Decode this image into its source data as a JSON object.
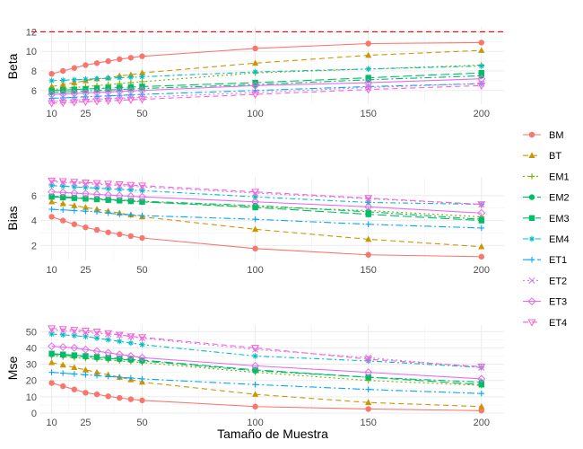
{
  "chart_data": {
    "type": "line",
    "xlabel": "Tamaño de Muestra",
    "x_ticks": [
      10,
      25,
      50,
      100,
      150,
      200
    ],
    "x": [
      10,
      15,
      20,
      25,
      30,
      35,
      40,
      45,
      50,
      100,
      150,
      200
    ],
    "xlim": [
      5,
      210
    ],
    "legend": {
      "placement": "right"
    },
    "series_styles": [
      {
        "name": "BM",
        "color": "#F8766D",
        "dash": "",
        "shape": "circle"
      },
      {
        "name": "BT",
        "color": "#CD9600",
        "dash": "6,4",
        "shape": "triangle"
      },
      {
        "name": "EM1",
        "color": "#7CAE00",
        "dash": "2,3",
        "shape": "plus"
      },
      {
        "name": "EM2",
        "color": "#00BE67",
        "dash": "8,3,2,3",
        "shape": "circle"
      },
      {
        "name": "EM3",
        "color": "#00BE67",
        "dash": "10,4",
        "shape": "square"
      },
      {
        "name": "EM4",
        "color": "#00BFC4",
        "dash": "6,3,2,3",
        "shape": "star"
      },
      {
        "name": "ET1",
        "color": "#00A9FF",
        "dash": "8,3,2,3",
        "shape": "plus"
      },
      {
        "name": "ET2",
        "color": "#C77CFF",
        "dash": "2,3",
        "shape": "cross"
      },
      {
        "name": "ET3",
        "color": "#E76BF3",
        "dash": "",
        "shape": "diamond"
      },
      {
        "name": "ET4",
        "color": "#FF61CC",
        "dash": "6,4",
        "shape": "triangle-down"
      }
    ],
    "panels": [
      {
        "ylabel": "Beta",
        "ylim": [
          4.6,
          12.5
        ],
        "y_ticks": [
          6,
          8,
          10,
          12
        ],
        "reference_line": {
          "y": 12,
          "color": "#FF0000",
          "dash": "6,4"
        },
        "series": [
          {
            "name": "BM",
            "values": [
              7.7,
              8.0,
              8.3,
              8.6,
              8.8,
              9.0,
              9.2,
              9.35,
              9.5,
              10.3,
              10.8,
              10.9
            ]
          },
          {
            "name": "BT",
            "values": [
              6.4,
              6.6,
              6.8,
              7.0,
              7.2,
              7.3,
              7.5,
              7.6,
              7.8,
              8.8,
              9.6,
              10.1
            ]
          },
          {
            "name": "EM1",
            "values": [
              6.1,
              6.2,
              6.3,
              6.4,
              6.5,
              6.6,
              6.7,
              6.8,
              6.9,
              7.8,
              8.2,
              8.6
            ]
          },
          {
            "name": "EM2",
            "values": [
              5.8,
              5.85,
              5.9,
              5.95,
              6.0,
              6.05,
              6.1,
              6.15,
              6.2,
              6.6,
              7.1,
              7.5
            ]
          },
          {
            "name": "EM3",
            "values": [
              6.0,
              6.05,
              6.1,
              6.15,
              6.2,
              6.25,
              6.3,
              6.35,
              6.4,
              6.8,
              7.3,
              7.8
            ]
          },
          {
            "name": "EM4",
            "values": [
              7.0,
              7.05,
              7.1,
              7.15,
              7.2,
              7.25,
              7.3,
              7.35,
              7.4,
              7.9,
              8.2,
              8.5
            ]
          },
          {
            "name": "ET1",
            "values": [
              5.2,
              5.25,
              5.3,
              5.35,
              5.4,
              5.45,
              5.5,
              5.55,
              5.6,
              6.0,
              6.4,
              6.7
            ]
          },
          {
            "name": "ET2",
            "values": [
              4.9,
              4.95,
              5.0,
              5.05,
              5.1,
              5.15,
              5.2,
              5.25,
              5.3,
              5.8,
              6.3,
              6.7
            ]
          },
          {
            "name": "ET3",
            "values": [
              5.6,
              5.65,
              5.7,
              5.75,
              5.8,
              5.85,
              5.9,
              5.95,
              6.0,
              6.5,
              6.8,
              7.2
            ]
          },
          {
            "name": "ET4",
            "values": [
              4.7,
              4.75,
              4.8,
              4.85,
              4.9,
              4.95,
              5.0,
              5.05,
              5.1,
              5.6,
              6.1,
              6.5
            ]
          }
        ]
      },
      {
        "ylabel": "Bias",
        "ylim": [
          0.8,
          7.5
        ],
        "y_ticks": [
          2,
          4,
          6
        ],
        "series": [
          {
            "name": "BM",
            "values": [
              4.3,
              4.0,
              3.7,
              3.45,
              3.25,
              3.05,
              2.9,
              2.75,
              2.6,
              1.75,
              1.25,
              1.1
            ]
          },
          {
            "name": "BT",
            "values": [
              5.5,
              5.35,
              5.2,
              5.05,
              4.9,
              4.75,
              4.6,
              4.45,
              4.3,
              3.3,
              2.5,
              1.9
            ]
          },
          {
            "name": "EM1",
            "values": [
              5.9,
              5.85,
              5.8,
              5.75,
              5.7,
              5.65,
              5.6,
              5.55,
              5.5,
              5.1,
              4.8,
              4.3
            ]
          },
          {
            "name": "EM2",
            "values": [
              5.95,
              5.9,
              5.85,
              5.8,
              5.75,
              5.7,
              5.65,
              5.6,
              5.55,
              5.2,
              4.7,
              4.1
            ]
          },
          {
            "name": "EM3",
            "values": [
              5.9,
              5.85,
              5.8,
              5.75,
              5.7,
              5.65,
              5.6,
              5.55,
              5.5,
              5.05,
              4.5,
              4.0
            ]
          },
          {
            "name": "EM4",
            "values": [
              6.8,
              6.75,
              6.7,
              6.65,
              6.6,
              6.55,
              6.5,
              6.45,
              6.4,
              5.9,
              5.45,
              5.3
            ]
          },
          {
            "name": "ET1",
            "values": [
              4.9,
              4.85,
              4.8,
              4.75,
              4.7,
              4.6,
              4.5,
              4.45,
              4.4,
              4.1,
              3.7,
              3.4
            ]
          },
          {
            "name": "ET2",
            "values": [
              7.1,
              7.05,
              7.0,
              6.95,
              6.9,
              6.85,
              6.8,
              6.75,
              6.7,
              6.2,
              5.75,
              5.3
            ]
          },
          {
            "name": "ET3",
            "values": [
              6.3,
              6.25,
              6.2,
              6.15,
              6.1,
              6.05,
              6.0,
              5.95,
              5.9,
              5.5,
              5.1,
              4.6
            ]
          },
          {
            "name": "ET4",
            "values": [
              7.2,
              7.15,
              7.1,
              7.05,
              7.0,
              6.95,
              6.9,
              6.85,
              6.8,
              6.3,
              5.8,
              5.3
            ]
          }
        ]
      },
      {
        "ylabel": "Mse",
        "ylim": [
          0,
          54
        ],
        "y_ticks": [
          0,
          10,
          20,
          30,
          40,
          50
        ],
        "series": [
          {
            "name": "BM",
            "values": [
              18.5,
              16.5,
              14.5,
              12.5,
              11.5,
              10.3,
              9.3,
              8.5,
              7.8,
              4.0,
              2.5,
              1.5
            ]
          },
          {
            "name": "BT",
            "values": [
              31,
              29.5,
              28,
              26.5,
              25,
              23.5,
              22,
              20.5,
              19,
              11.5,
              6.5,
              4.0
            ]
          },
          {
            "name": "EM1",
            "values": [
              35,
              34.5,
              34,
              33.5,
              33,
              32.5,
              32,
              31.5,
              31,
              25,
              20,
              17
            ]
          },
          {
            "name": "EM2",
            "values": [
              36,
              35.5,
              35,
              34.5,
              34,
              33.5,
              33,
              32.5,
              32,
              26,
              22,
              19
            ]
          },
          {
            "name": "EM3",
            "values": [
              36.5,
              36,
              35.5,
              35,
              34.5,
              34,
              33.5,
              33,
              32.5,
              26.5,
              22,
              17.5
            ]
          },
          {
            "name": "EM4",
            "values": [
              48.5,
              48,
              47.5,
              47,
              46,
              45,
              44,
              43,
              42,
              35,
              32,
              28
            ]
          },
          {
            "name": "ET1",
            "values": [
              25,
              24.5,
              24,
              23.5,
              23,
              22.5,
              22,
              21.5,
              21,
              17.5,
              14.5,
              12
            ]
          },
          {
            "name": "ET2",
            "values": [
              51,
              50.5,
              50,
              49.5,
              49,
              48.5,
              48,
              47,
              46,
              39,
              34,
              28
            ]
          },
          {
            "name": "ET3",
            "values": [
              41,
              40.5,
              40,
              39,
              38,
              37,
              36,
              35,
              34,
              29,
              25,
              21
            ]
          },
          {
            "name": "ET4",
            "values": [
              52,
              51.5,
              51,
              50.5,
              50,
              49,
              48,
              47,
              46.5,
              40,
              33,
              28.5
            ]
          }
        ]
      }
    ]
  }
}
